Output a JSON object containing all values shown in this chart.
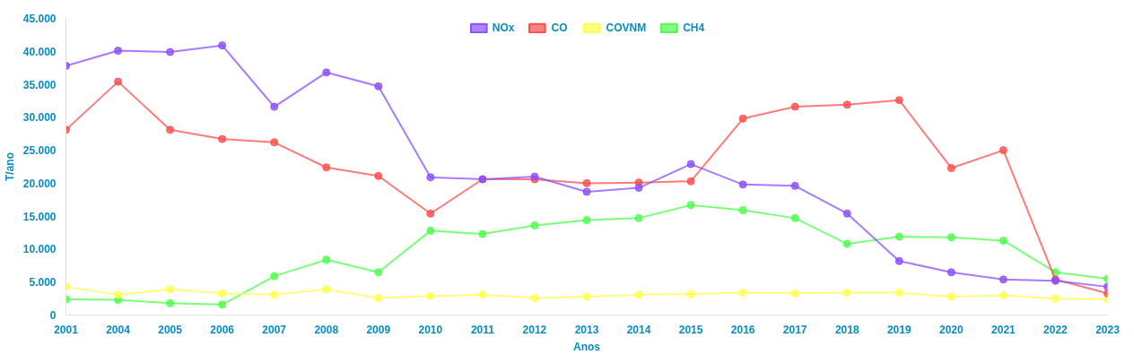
{
  "chart_data": {
    "type": "line",
    "xlabel": "Anos",
    "ylabel": "T/ano",
    "categories": [
      "2001",
      "2004",
      "2005",
      "2006",
      "2007",
      "2008",
      "2009",
      "2010",
      "2011",
      "2012",
      "2013",
      "2014",
      "2015",
      "2016",
      "2017",
      "2018",
      "2019",
      "2020",
      "2021",
      "2022",
      "2023"
    ],
    "series": [
      {
        "name": "NOx",
        "color": "#8a4fff",
        "values": [
          37800,
          40100,
          39900,
          40900,
          31600,
          36800,
          34700,
          20900,
          20600,
          21000,
          18700,
          19300,
          22900,
          19800,
          19600,
          15400,
          8200,
          6500,
          5400,
          5200,
          4300
        ]
      },
      {
        "name": "CO",
        "color": "#ff4d4d",
        "values": [
          28100,
          35400,
          28100,
          26700,
          26200,
          22400,
          21100,
          15400,
          20600,
          20600,
          20000,
          20100,
          20300,
          29800,
          31600,
          31900,
          32600,
          22300,
          25000,
          5400,
          3300
        ]
      },
      {
        "name": "COVNM",
        "color": "#ffff4d",
        "values": [
          4300,
          3100,
          3900,
          3300,
          3100,
          3900,
          2600,
          2900,
          3100,
          2600,
          2800,
          3100,
          3200,
          3400,
          3300,
          3400,
          3400,
          2800,
          3000,
          2500,
          2400
        ]
      },
      {
        "name": "CH4",
        "color": "#4dff4d",
        "values": [
          2400,
          2300,
          1800,
          1600,
          5900,
          8400,
          6500,
          12800,
          12300,
          13600,
          14400,
          14700,
          16700,
          15900,
          14700,
          10800,
          11900,
          11800,
          11300,
          6500,
          5500
        ]
      }
    ],
    "ylim": [
      0,
      45000
    ],
    "yticks": [
      0,
      {
        "value": 5000,
        "label": "5.000"
      },
      {
        "value": 10000,
        "label": "10.000"
      },
      {
        "value": 15000,
        "label": "15.000"
      },
      {
        "value": 20000,
        "label": "20.000"
      },
      {
        "value": 25000,
        "label": "25.000"
      },
      {
        "value": 30000,
        "label": "30.000"
      },
      {
        "value": 35000,
        "label": "35.000"
      },
      {
        "value": 40000,
        "label": "40.000"
      },
      {
        "value": 45000,
        "label": "45.000"
      }
    ],
    "legend": "top",
    "marker": "circle",
    "line_style": "solid",
    "grid": false
  }
}
